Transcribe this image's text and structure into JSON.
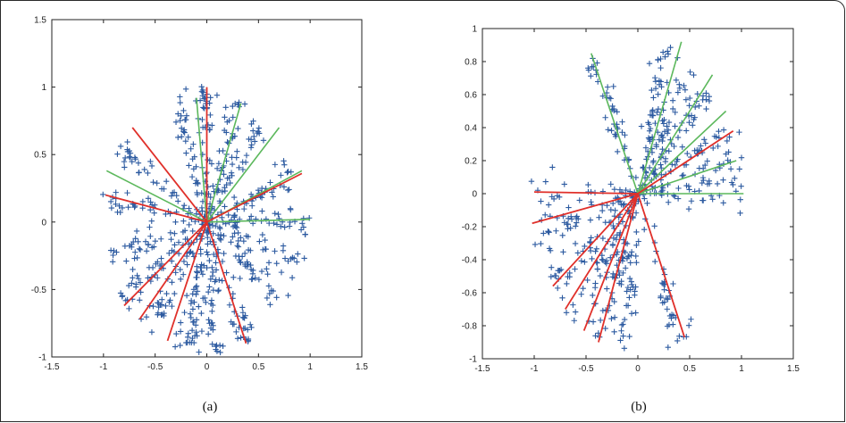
{
  "captions": [
    "(a)",
    "(b)"
  ],
  "colors": {
    "points": "#2c5aa0",
    "green_lines": "#5cb85c",
    "red_lines": "#e0302a"
  },
  "chart_data": [
    {
      "type": "scatter",
      "title": "",
      "xlabel": "",
      "ylabel": "",
      "xlim": [
        -1.5,
        1.5
      ],
      "ylim": [
        -1,
        1.5
      ],
      "xticks": [
        "-1.5",
        "-1",
        "-0.5",
        "0",
        "0.5",
        "1",
        "1.5"
      ],
      "yticks": [
        "-1",
        "-0.5",
        "0",
        "0.5",
        "1",
        "1.5"
      ],
      "grid": false,
      "marker": "+",
      "point_clusters": [
        {
          "angle_deg": 90,
          "radius": 1.0,
          "count": 45
        },
        {
          "angle_deg": 72,
          "radius": 0.95,
          "count": 40
        },
        {
          "angle_deg": 55,
          "radius": 0.9,
          "count": 40
        },
        {
          "angle_deg": 22,
          "radius": 0.95,
          "count": 45
        },
        {
          "angle_deg": 1,
          "radius": 1.0,
          "count": 45
        },
        {
          "angle_deg": 108,
          "radius": 0.95,
          "count": 40
        },
        {
          "angle_deg": 148,
          "radius": 1.0,
          "count": 40
        },
        {
          "angle_deg": 170,
          "radius": 1.0,
          "count": 35
        },
        {
          "angle_deg": 195,
          "radius": 1.0,
          "count": 40
        },
        {
          "angle_deg": 215,
          "radius": 1.0,
          "count": 45
        },
        {
          "angle_deg": 235,
          "radius": 0.95,
          "count": 45
        },
        {
          "angle_deg": 258,
          "radius": 0.95,
          "count": 50
        },
        {
          "angle_deg": 275,
          "radius": 1.0,
          "count": 50
        },
        {
          "angle_deg": 295,
          "radius": 0.95,
          "count": 45
        },
        {
          "angle_deg": 320,
          "radius": 0.95,
          "count": 40
        },
        {
          "angle_deg": 340,
          "radius": 0.95,
          "count": 35
        }
      ],
      "green_lines": [
        {
          "x": -0.1,
          "y": 0.92
        },
        {
          "x": 0.33,
          "y": 0.88
        },
        {
          "x": 0.7,
          "y": 0.7
        },
        {
          "x": 0.92,
          "y": 0.38
        },
        {
          "x": 1.0,
          "y": 0.02
        },
        {
          "x": -0.97,
          "y": 0.38
        }
      ],
      "red_lines": [
        {
          "x": 0.0,
          "y": 1.0
        },
        {
          "x": -0.72,
          "y": 0.7
        },
        {
          "x": 0.92,
          "y": 0.36
        },
        {
          "x": -0.98,
          "y": 0.2
        },
        {
          "x": -0.8,
          "y": -0.62
        },
        {
          "x": -0.65,
          "y": -0.72
        },
        {
          "x": -0.38,
          "y": -0.88
        },
        {
          "x": 0.38,
          "y": -0.9
        }
      ]
    },
    {
      "type": "scatter",
      "title": "",
      "xlabel": "",
      "ylabel": "",
      "xlim": [
        -1.5,
        1.5
      ],
      "ylim": [
        -1,
        1
      ],
      "xticks": [
        "-1.5",
        "-1",
        "-0.5",
        "0",
        "0.5",
        "1",
        "1.5"
      ],
      "yticks": [
        "-1",
        "-0.8",
        "-0.6",
        "-0.4",
        "-0.2",
        "0",
        "0.2",
        "0.4",
        "0.6",
        "0.8",
        "1"
      ],
      "grid": false,
      "marker": "+",
      "point_clusters": [
        {
          "angle_deg": 118,
          "radius": 0.95,
          "count": 45
        },
        {
          "angle_deg": 72,
          "radius": 0.95,
          "count": 50
        },
        {
          "angle_deg": 58,
          "radius": 0.92,
          "count": 45
        },
        {
          "angle_deg": 42,
          "radius": 0.95,
          "count": 45
        },
        {
          "angle_deg": 22,
          "radius": 1.0,
          "count": 40
        },
        {
          "angle_deg": 8,
          "radius": 1.0,
          "count": 35
        },
        {
          "angle_deg": 0,
          "radius": 1.0,
          "count": 30
        },
        {
          "angle_deg": 180,
          "radius": 1.0,
          "count": 30
        },
        {
          "angle_deg": 195,
          "radius": 1.05,
          "count": 45
        },
        {
          "angle_deg": 215,
          "radius": 1.0,
          "count": 45
        },
        {
          "angle_deg": 232,
          "radius": 1.0,
          "count": 45
        },
        {
          "angle_deg": 248,
          "radius": 0.95,
          "count": 45
        },
        {
          "angle_deg": 262,
          "radius": 0.92,
          "count": 40
        },
        {
          "angle_deg": 295,
          "radius": 0.98,
          "count": 40
        }
      ],
      "green_lines": [
        {
          "x": -0.45,
          "y": 0.85
        },
        {
          "x": 0.42,
          "y": 0.92
        },
        {
          "x": 0.72,
          "y": 0.72
        },
        {
          "x": 0.85,
          "y": 0.5
        },
        {
          "x": 0.95,
          "y": 0.2
        },
        {
          "x": 1.02,
          "y": 0.0
        }
      ],
      "red_lines": [
        {
          "x": 0.92,
          "y": 0.38
        },
        {
          "x": -1.0,
          "y": 0.01
        },
        {
          "x": -1.02,
          "y": -0.18
        },
        {
          "x": -0.82,
          "y": -0.56
        },
        {
          "x": -0.7,
          "y": -0.7
        },
        {
          "x": -0.52,
          "y": -0.83
        },
        {
          "x": -0.38,
          "y": -0.9
        },
        {
          "x": 0.45,
          "y": -0.87
        }
      ]
    }
  ]
}
